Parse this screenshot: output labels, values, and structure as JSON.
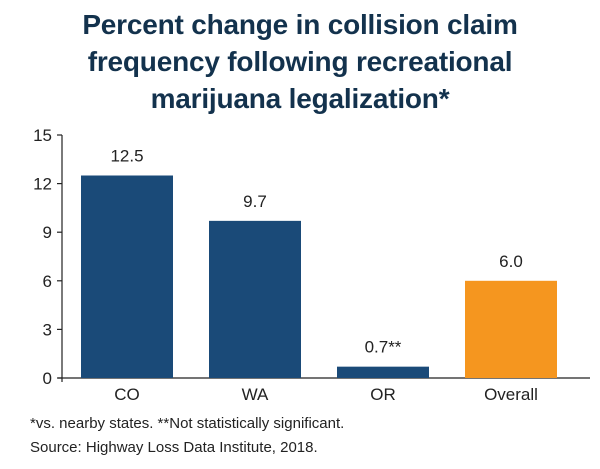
{
  "title_lines": [
    "Percent change in collision claim",
    "frequency following recreational",
    "marijuana legalization*"
  ],
  "footnotes": [
    "*vs. nearby states. **Not statistically significant.",
    "Source: Highway Loss Data Institute, 2018."
  ],
  "colors": {
    "title": "#13324d",
    "state_bar": "#1a4a78",
    "overall_bar": "#f5961f",
    "axis": "#222222",
    "text": "#222222"
  },
  "chart_data": {
    "type": "bar",
    "title": "Percent change in collision claim frequency following recreational marijuana legalization*",
    "categories": [
      "CO",
      "WA",
      "OR",
      "Overall"
    ],
    "values": [
      12.5,
      9.7,
      0.7,
      6.0
    ],
    "data_labels": [
      "12.5",
      "9.7",
      "0.7**",
      "6.0"
    ],
    "bar_colors": [
      "#1a4a78",
      "#1a4a78",
      "#1a4a78",
      "#f5961f"
    ],
    "ylim": [
      0,
      15
    ],
    "yticks": [
      0,
      3,
      6,
      9,
      12,
      15
    ],
    "xlabel": "",
    "ylabel": "",
    "grid": false,
    "legend": false
  }
}
